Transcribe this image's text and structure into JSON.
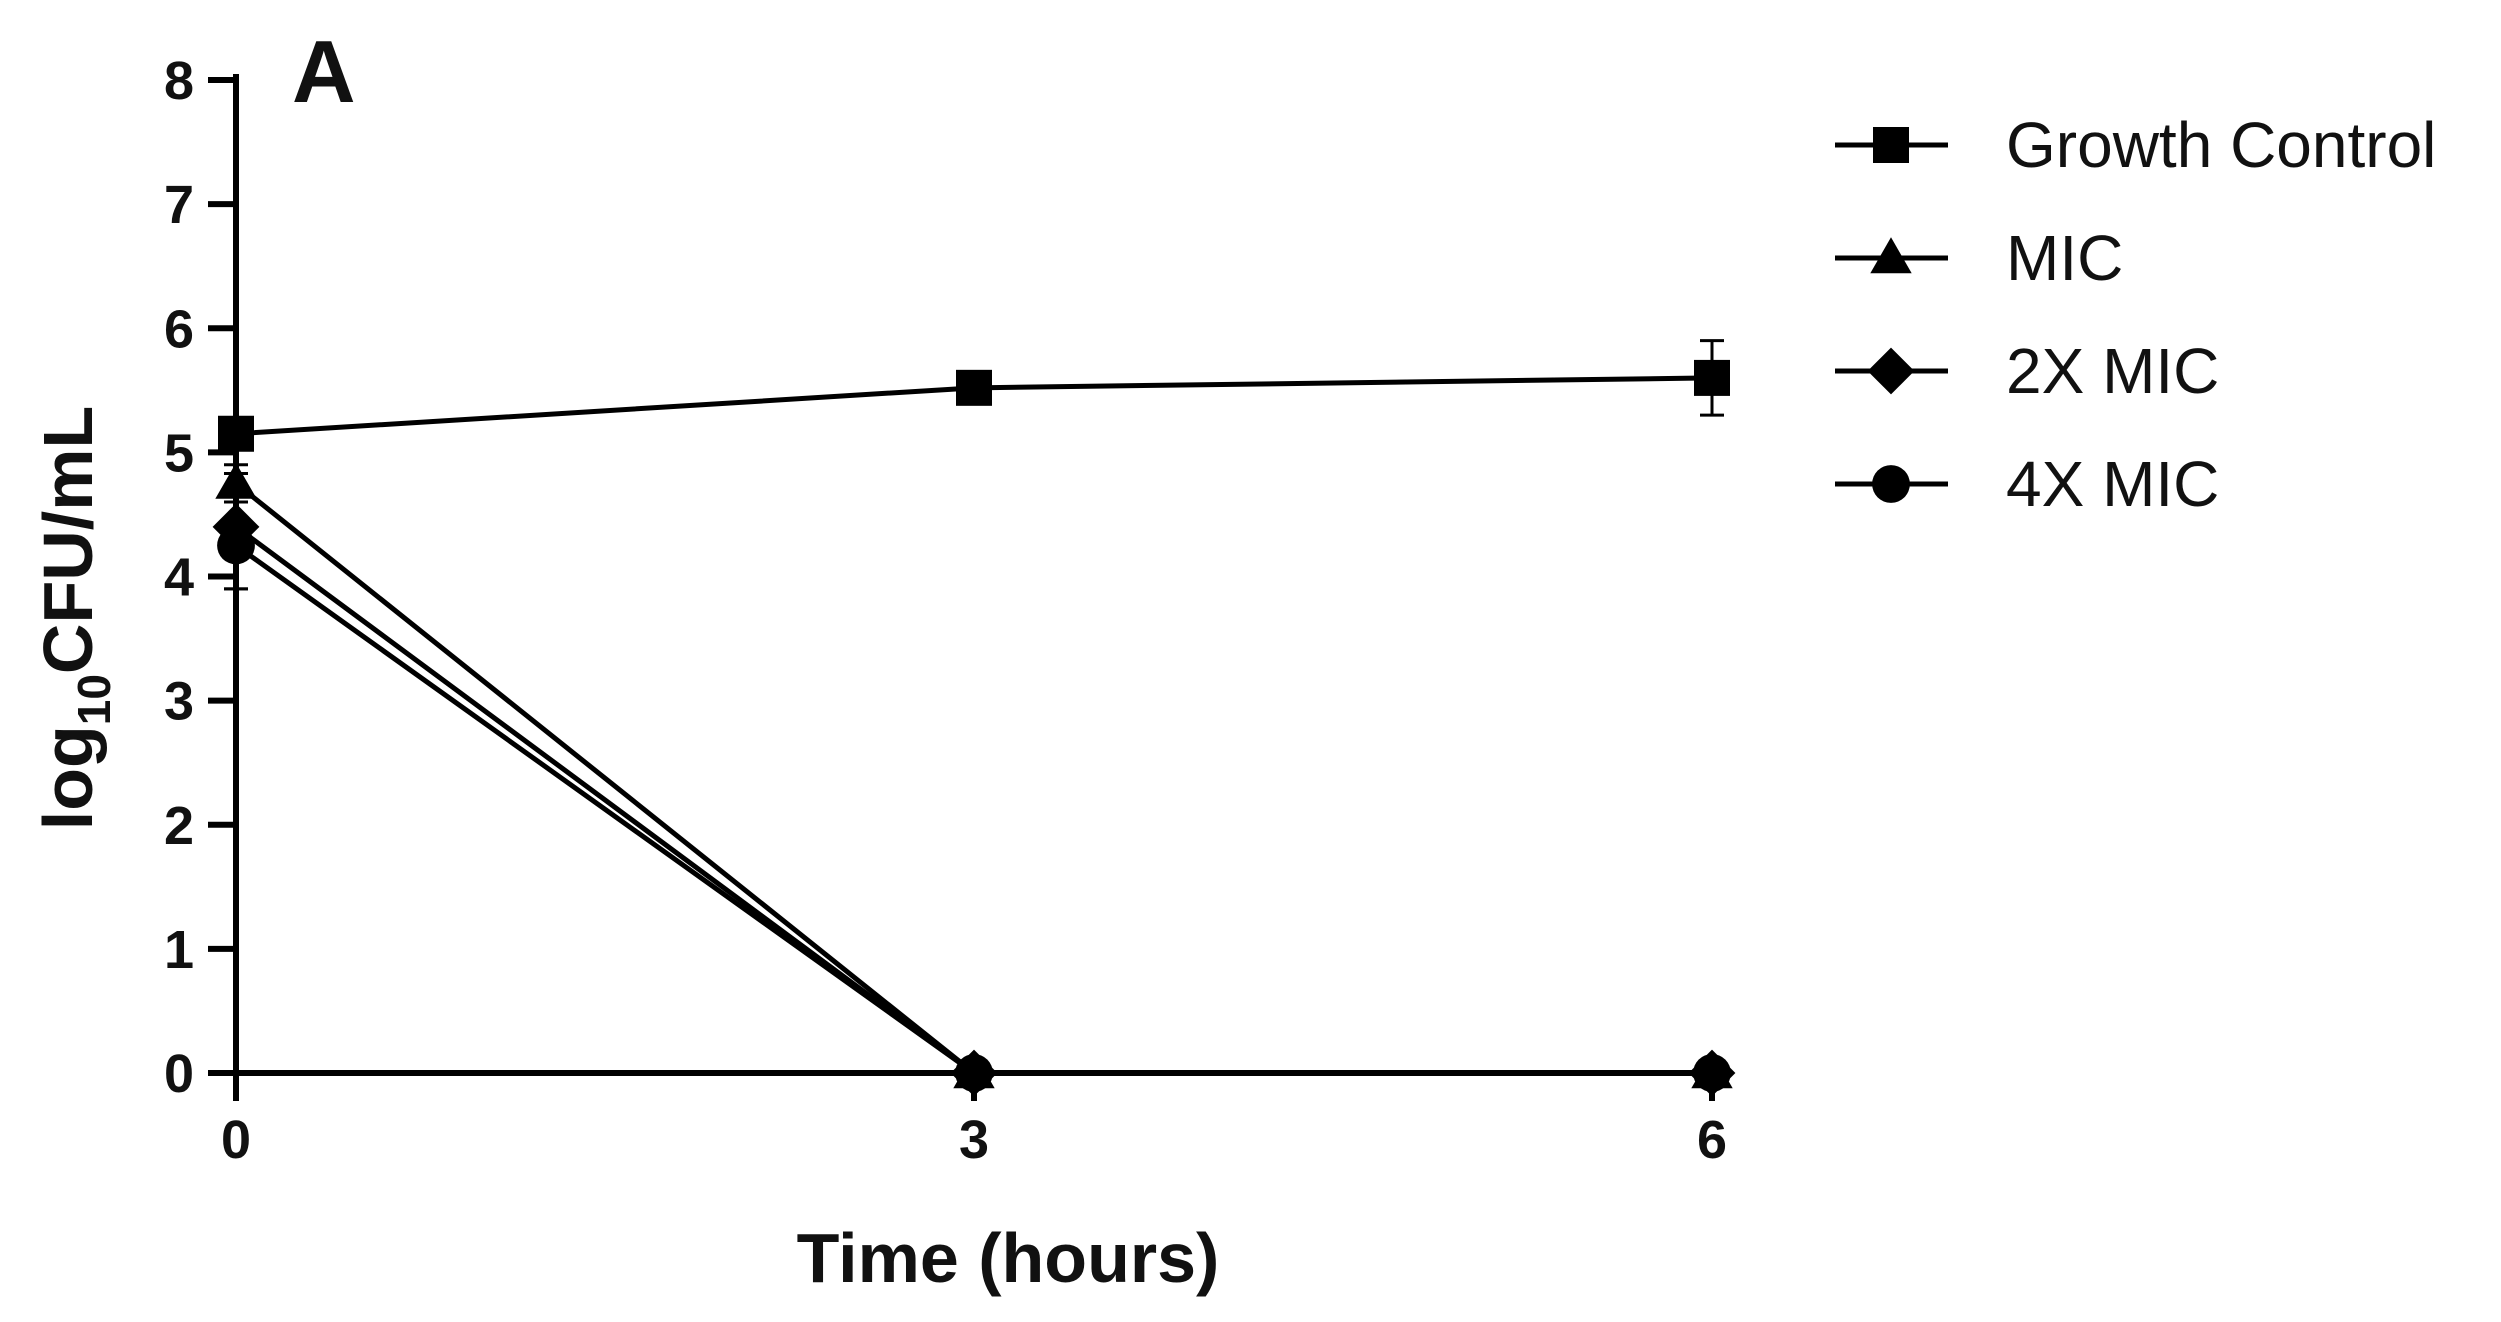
{
  "chart_data": {
    "type": "line",
    "panel_label": "A",
    "xlabel": "Time (hours)",
    "ylabel_main": "log",
    "ylabel_sub": "10",
    "ylabel_rest": "CFU/mL",
    "x": [
      0,
      3,
      6
    ],
    "xticks": [
      "0",
      "3",
      "6"
    ],
    "yticks": [
      "0",
      "1",
      "2",
      "3",
      "4",
      "5",
      "6",
      "7",
      "8"
    ],
    "ylim": [
      0,
      8
    ],
    "xlim": [
      0,
      6
    ],
    "grid": false,
    "legend_position": "right",
    "series": [
      {
        "name": "Growth Control",
        "marker": "square",
        "values": [
          5.15,
          5.52,
          5.6
        ],
        "errors": [
          0.06,
          0.05,
          0.3
        ]
      },
      {
        "name": "MIC",
        "marker": "triangle",
        "values": [
          4.75,
          0,
          0
        ],
        "errors": [
          0.08,
          0,
          0
        ]
      },
      {
        "name": "2X MIC",
        "marker": "diamond",
        "values": [
          4.4,
          0,
          0
        ],
        "errors": [
          0.5,
          0,
          0
        ]
      },
      {
        "name": "4X MIC",
        "marker": "circle",
        "values": [
          4.25,
          0,
          0
        ],
        "errors": [
          0.35,
          0,
          0
        ]
      }
    ]
  }
}
